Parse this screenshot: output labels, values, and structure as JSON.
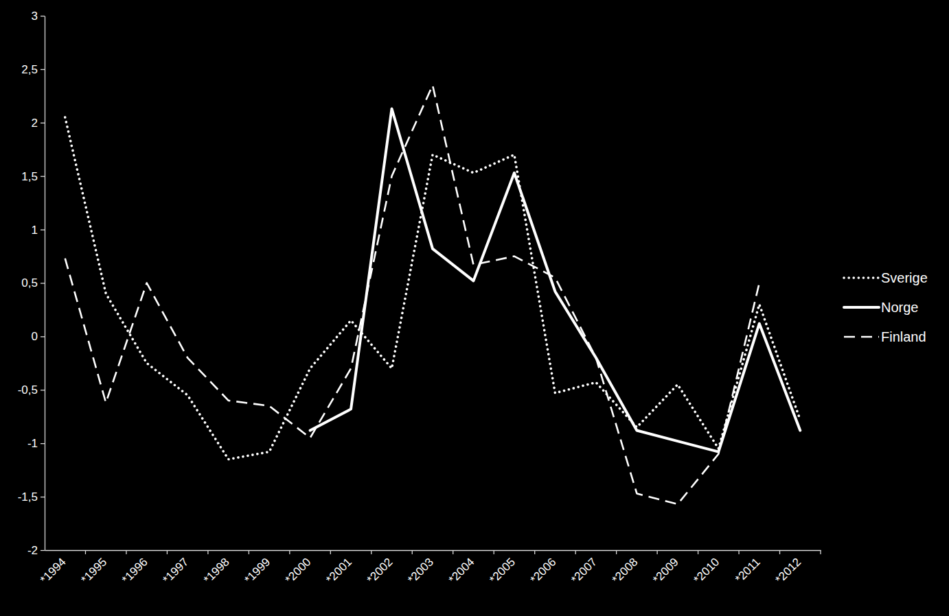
{
  "chart_data": {
    "type": "line",
    "categories": [
      "*1994",
      "*1995",
      "*1996",
      "*1997",
      "*1998",
      "*1999",
      "*2000",
      "*2001",
      "*2002",
      "*2003",
      "*2004",
      "*2005",
      "*2006",
      "*2007",
      "*2008",
      "*2009",
      "*2010",
      "*2011",
      "*2012"
    ],
    "series": [
      {
        "name": "Sverige",
        "color": "#ffffff",
        "line_style": "dotted",
        "values": [
          2.05,
          0.4,
          -0.25,
          -0.55,
          -1.15,
          -1.08,
          -0.3,
          0.15,
          -0.3,
          1.7,
          1.53,
          1.7,
          -0.53,
          -0.43,
          -0.85,
          -0.45,
          -1.05,
          0.3,
          -0.78
        ]
      },
      {
        "name": "Norge",
        "color": "#ffffff",
        "line_style": "solid",
        "values": [
          null,
          null,
          null,
          null,
          null,
          null,
          -0.88,
          -0.68,
          2.13,
          0.82,
          0.52,
          1.53,
          0.42,
          -0.2,
          -0.88,
          -0.98,
          -1.08,
          0.12,
          -0.88
        ]
      },
      {
        "name": "Finland",
        "color": "#ffffff",
        "line_style": "dashed",
        "values": [
          0.73,
          -0.62,
          0.5,
          -0.2,
          -0.6,
          -0.65,
          -0.95,
          -0.3,
          1.5,
          2.35,
          0.67,
          0.75,
          0.55,
          -0.2,
          -1.47,
          -1.57,
          -1.1,
          0.5,
          null
        ]
      }
    ],
    "ylim": [
      -2,
      3
    ],
    "yticks": [
      -2,
      {
        "value": -1.5,
        "label": "-1,5"
      },
      -1,
      {
        "value": -0.5,
        "label": "-0,5"
      },
      0,
      {
        "value": 0.5,
        "label": "0,5"
      },
      1,
      {
        "value": 1.5,
        "label": "1,5"
      },
      2,
      {
        "value": 2.5,
        "label": "2,5"
      },
      3
    ],
    "grid": false,
    "legend": "right"
  }
}
